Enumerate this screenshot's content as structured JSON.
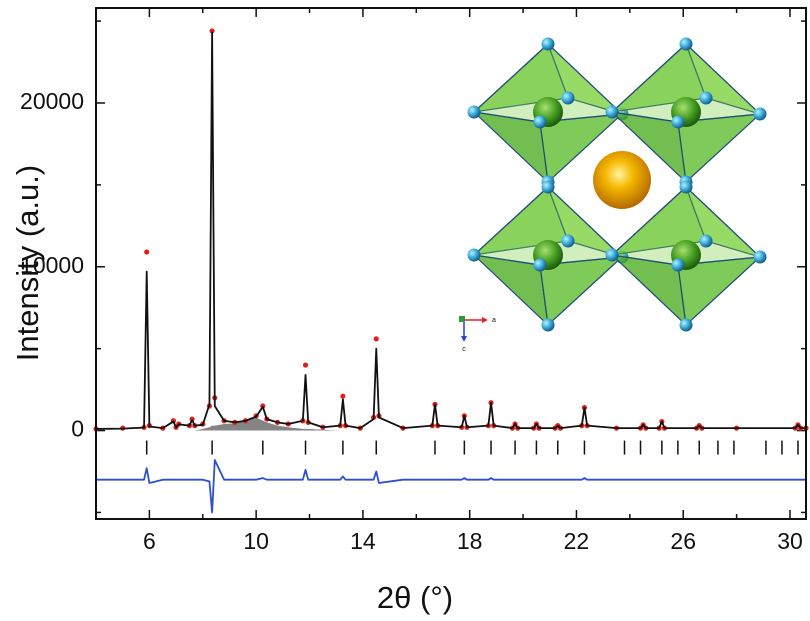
{
  "chart_data": {
    "type": "line",
    "xlabel": "2θ (°)",
    "ylabel": "Intensity (a.u.)",
    "xlim": [
      4,
      30.6
    ],
    "ylim": [
      -5400,
      25800
    ],
    "xticks": [
      6,
      10,
      14,
      18,
      22,
      26,
      30
    ],
    "xticks_minor": [
      8,
      12,
      16,
      20,
      24,
      28
    ],
    "yticks": [
      0,
      10000,
      20000
    ],
    "yticks_minor": [
      -5000,
      5000,
      15000,
      25000
    ],
    "x": [
      4.0,
      5.0,
      5.8,
      5.9,
      6.0,
      6.5,
      6.9,
      7.0,
      7.1,
      7.5,
      7.6,
      7.7,
      8.0,
      8.25,
      8.35,
      8.45,
      8.8,
      9.2,
      9.6,
      10.0,
      10.25,
      10.4,
      10.8,
      11.2,
      11.75,
      11.85,
      11.95,
      12.5,
      13.15,
      13.25,
      13.35,
      13.9,
      14.4,
      14.5,
      14.6,
      15.5,
      16.6,
      16.7,
      16.8,
      17.7,
      17.8,
      17.9,
      18.7,
      18.8,
      18.9,
      19.6,
      19.7,
      19.8,
      20.4,
      20.5,
      20.6,
      21.2,
      21.3,
      21.4,
      22.2,
      22.3,
      22.4,
      23.5,
      24.4,
      24.5,
      24.6,
      25.1,
      25.2,
      25.3,
      26.5,
      26.6,
      26.7,
      28.0,
      30.2,
      30.3,
      30.4,
      30.6
    ],
    "series": [
      {
        "type": "area",
        "color": "#6e6e6e",
        "values": [
          0,
          0,
          0,
          0,
          0,
          0,
          0,
          0,
          0,
          0,
          0,
          0,
          100,
          200,
          300,
          300,
          400,
          450,
          600,
          800,
          600,
          500,
          300,
          200,
          100,
          100,
          100,
          50,
          0,
          0,
          0,
          0,
          0,
          0,
          0,
          0,
          0,
          0,
          0,
          0,
          0,
          0,
          0,
          0,
          0,
          0,
          0,
          0,
          0,
          0,
          0,
          0,
          0,
          0,
          0,
          0,
          0,
          0,
          0,
          0,
          0,
          0,
          0,
          0,
          0,
          0,
          0,
          0,
          0,
          0,
          0,
          0
        ]
      },
      {
        "type": "scatter",
        "color": "#e0201b",
        "values": [
          100,
          150,
          200,
          10900,
          300,
          150,
          600,
          200,
          400,
          300,
          700,
          300,
          400,
          1500,
          24400,
          2000,
          600,
          500,
          600,
          900,
          1500,
          700,
          500,
          400,
          600,
          4000,
          500,
          200,
          300,
          2100,
          300,
          150,
          800,
          5600,
          900,
          150,
          300,
          1600,
          300,
          200,
          900,
          200,
          300,
          1700,
          300,
          150,
          400,
          150,
          150,
          400,
          150,
          150,
          300,
          150,
          300,
          1400,
          300,
          150,
          150,
          350,
          150,
          150,
          550,
          150,
          150,
          300,
          150,
          150,
          150,
          350,
          150,
          150
        ]
      },
      {
        "type": "line",
        "color": "#111111",
        "values": [
          100,
          120,
          180,
          9700,
          250,
          150,
          550,
          200,
          380,
          300,
          650,
          300,
          350,
          1600,
          24300,
          1500,
          600,
          500,
          600,
          850,
          1450,
          700,
          500,
          400,
          600,
          3400,
          500,
          200,
          300,
          1900,
          300,
          150,
          700,
          5000,
          800,
          150,
          300,
          1600,
          300,
          200,
          900,
          200,
          300,
          1700,
          300,
          150,
          400,
          150,
          150,
          400,
          150,
          150,
          300,
          150,
          300,
          1400,
          300,
          150,
          150,
          350,
          150,
          150,
          550,
          150,
          150,
          300,
          150,
          150,
          150,
          350,
          150,
          150
        ]
      },
      {
        "type": "line",
        "color": "#2f4fcf",
        "values": [
          -3000,
          -3000,
          -3000,
          -2300,
          -3200,
          -3000,
          -3000,
          -3000,
          -3000,
          -3000,
          -3000,
          -3000,
          -3000,
          -3100,
          -5000,
          -1800,
          -3000,
          -3000,
          -3000,
          -3000,
          -2900,
          -3000,
          -3000,
          -3000,
          -3000,
          -2400,
          -3000,
          -3000,
          -3000,
          -2800,
          -3000,
          -3000,
          -3000,
          -2500,
          -3200,
          -3000,
          -3000,
          -3000,
          -3000,
          -3000,
          -2900,
          -3000,
          -3000,
          -2900,
          -3000,
          -3000,
          -3000,
          -3000,
          -3000,
          -3000,
          -3000,
          -3000,
          -3000,
          -3000,
          -3000,
          -2900,
          -3000,
          -3000,
          -3000,
          -3000,
          -3000,
          -3000,
          -3000,
          -3000,
          -3000,
          -3000,
          -3000,
          -3000,
          -3000,
          -3000,
          -3000,
          -3000
        ]
      }
    ],
    "bragg_positions": [
      5.9,
      8.35,
      10.25,
      11.85,
      13.25,
      14.5,
      16.7,
      17.8,
      18.8,
      19.7,
      20.5,
      21.3,
      22.3,
      23.8,
      24.4,
      25.2,
      25.8,
      26.6,
      27.3,
      27.9,
      29.1,
      29.7,
      30.3
    ],
    "bragg_color": "#111111",
    "inset_axes": [
      "a",
      "c"
    ]
  }
}
